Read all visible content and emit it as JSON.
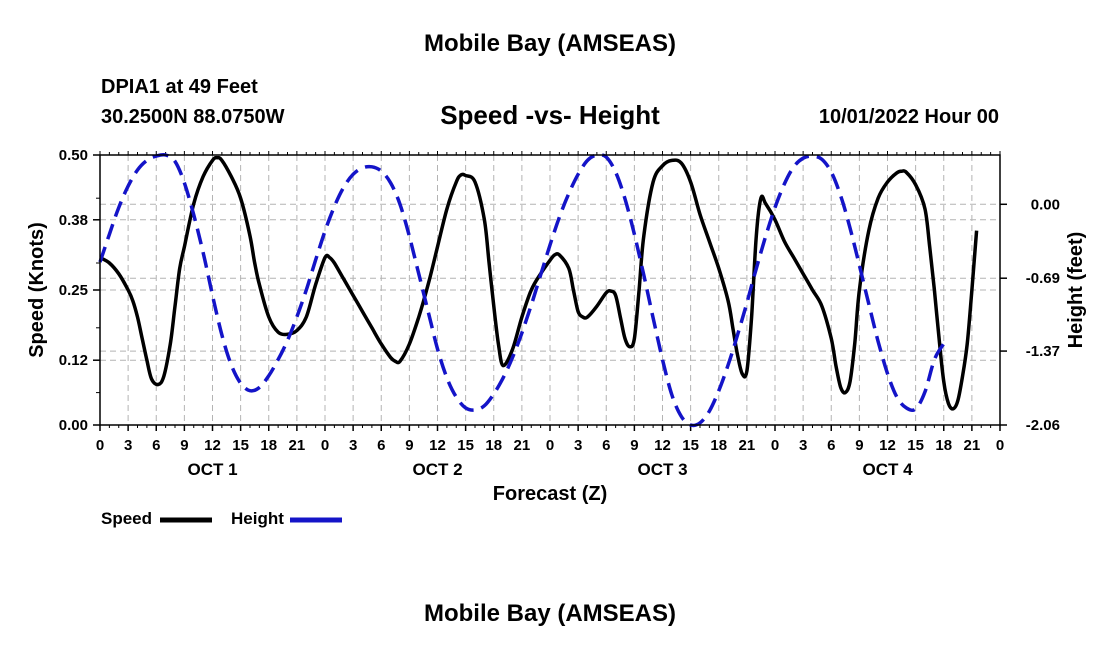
{
  "header": {
    "title": "Mobile Bay (AMSEAS)",
    "station": "DPIA1 at 49 Feet",
    "coordinates": "30.2500N  88.0750W",
    "date": "10/01/2022 Hour 00"
  },
  "footer": {
    "title": "Mobile Bay (AMSEAS)"
  },
  "legend": {
    "speed_label": "Speed",
    "height_label": "Height"
  },
  "chart_data": {
    "type": "line",
    "title": "Speed -vs- Height",
    "xlabel": "Forecast (Z)",
    "ylabel_left": "Speed (Knots)",
    "ylabel_right": "Height (feet)",
    "xlim": [
      0,
      96
    ],
    "ylim_left": [
      0,
      0.5
    ],
    "ylim_right": [
      -2.06,
      0.46
    ],
    "grid": true,
    "x_ticks": [
      0,
      3,
      6,
      9,
      12,
      15,
      18,
      21,
      24,
      27,
      30,
      33,
      36,
      39,
      42,
      45,
      48,
      51,
      54,
      57,
      60,
      63,
      66,
      69,
      72,
      75,
      78,
      81,
      84,
      87,
      90,
      93,
      96
    ],
    "x_tick_labels": [
      "0",
      "3",
      "6",
      "9",
      "12",
      "15",
      "18",
      "21",
      "0",
      "3",
      "6",
      "9",
      "12",
      "15",
      "18",
      "21",
      "0",
      "3",
      "6",
      "9",
      "12",
      "15",
      "18",
      "21",
      "0",
      "3",
      "6",
      "9",
      "12",
      "15",
      "18",
      "21",
      "0"
    ],
    "day_labels": [
      {
        "x": 12,
        "label": "OCT 1"
      },
      {
        "x": 36,
        "label": "OCT 2"
      },
      {
        "x": 60,
        "label": "OCT 3"
      },
      {
        "x": 84,
        "label": "OCT 4"
      }
    ],
    "left_ticks": [
      0.0,
      0.12,
      0.25,
      0.38,
      0.5
    ],
    "left_tick_labels": [
      "0.00",
      "0.12",
      "0.25",
      "0.38",
      "0.50"
    ],
    "right_ticks": [
      0.0,
      -0.69,
      -1.37,
      -2.06
    ],
    "right_tick_labels": [
      "0.00",
      "-0.69",
      "-1.37",
      "-2.06"
    ],
    "series": [
      {
        "name": "Speed",
        "axis": "left",
        "color": "#000000",
        "dash": "solid",
        "points": [
          [
            0,
            0.31
          ],
          [
            1,
            0.3
          ],
          [
            2,
            0.28
          ],
          [
            3,
            0.25
          ],
          [
            3.5,
            0.23
          ],
          [
            4,
            0.2
          ],
          [
            4.5,
            0.16
          ],
          [
            5,
            0.12
          ],
          [
            5.5,
            0.085
          ],
          [
            6.2,
            0.075
          ],
          [
            6.8,
            0.09
          ],
          [
            7.5,
            0.15
          ],
          [
            8,
            0.22
          ],
          [
            8.5,
            0.29
          ],
          [
            9,
            0.33
          ],
          [
            10,
            0.41
          ],
          [
            11,
            0.46
          ],
          [
            12,
            0.49
          ],
          [
            12.5,
            0.495
          ],
          [
            13,
            0.49
          ],
          [
            14,
            0.46
          ],
          [
            15,
            0.42
          ],
          [
            16,
            0.35
          ],
          [
            16.5,
            0.3
          ],
          [
            17,
            0.26
          ],
          [
            18,
            0.2
          ],
          [
            19,
            0.172
          ],
          [
            20,
            0.168
          ],
          [
            21,
            0.175
          ],
          [
            22,
            0.2
          ],
          [
            23,
            0.26
          ],
          [
            24,
            0.31
          ],
          [
            24.5,
            0.31
          ],
          [
            25,
            0.3
          ],
          [
            26,
            0.27
          ],
          [
            27,
            0.24
          ],
          [
            28,
            0.21
          ],
          [
            29,
            0.18
          ],
          [
            30,
            0.15
          ],
          [
            31,
            0.125
          ],
          [
            31.5,
            0.118
          ],
          [
            32,
            0.118
          ],
          [
            33,
            0.15
          ],
          [
            34,
            0.2
          ],
          [
            35,
            0.26
          ],
          [
            36,
            0.33
          ],
          [
            37,
            0.4
          ],
          [
            38,
            0.45
          ],
          [
            38.5,
            0.463
          ],
          [
            39,
            0.462
          ],
          [
            40,
            0.45
          ],
          [
            41,
            0.38
          ],
          [
            41.5,
            0.3
          ],
          [
            42,
            0.22
          ],
          [
            42.5,
            0.15
          ],
          [
            43,
            0.11
          ],
          [
            44,
            0.14
          ],
          [
            45,
            0.2
          ],
          [
            46,
            0.25
          ],
          [
            47,
            0.28
          ],
          [
            48,
            0.305
          ],
          [
            48.5,
            0.315
          ],
          [
            49,
            0.315
          ],
          [
            50,
            0.29
          ],
          [
            50.5,
            0.25
          ],
          [
            51,
            0.21
          ],
          [
            51.5,
            0.2
          ],
          [
            52,
            0.2
          ],
          [
            53,
            0.22
          ],
          [
            54,
            0.245
          ],
          [
            54.5,
            0.248
          ],
          [
            55,
            0.24
          ],
          [
            55.5,
            0.2
          ],
          [
            56,
            0.16
          ],
          [
            56.5,
            0.145
          ],
          [
            57,
            0.16
          ],
          [
            57.5,
            0.25
          ],
          [
            58,
            0.35
          ],
          [
            59,
            0.45
          ],
          [
            60,
            0.48
          ],
          [
            61,
            0.49
          ],
          [
            62,
            0.485
          ],
          [
            63,
            0.45
          ],
          [
            64,
            0.39
          ],
          [
            65,
            0.34
          ],
          [
            66,
            0.29
          ],
          [
            67,
            0.23
          ],
          [
            67.5,
            0.18
          ],
          [
            68,
            0.13
          ],
          [
            68.5,
            0.095
          ],
          [
            69,
            0.1
          ],
          [
            69.5,
            0.2
          ],
          [
            70,
            0.35
          ],
          [
            70.5,
            0.42
          ],
          [
            71,
            0.41
          ],
          [
            72,
            0.38
          ],
          [
            73,
            0.34
          ],
          [
            74,
            0.31
          ],
          [
            75,
            0.28
          ],
          [
            76,
            0.25
          ],
          [
            77,
            0.22
          ],
          [
            78,
            0.16
          ],
          [
            78.5,
            0.11
          ],
          [
            79,
            0.07
          ],
          [
            79.5,
            0.06
          ],
          [
            80,
            0.08
          ],
          [
            80.5,
            0.15
          ],
          [
            81,
            0.25
          ],
          [
            82,
            0.36
          ],
          [
            83,
            0.42
          ],
          [
            84,
            0.45
          ],
          [
            85,
            0.467
          ],
          [
            85.5,
            0.47
          ],
          [
            86,
            0.468
          ],
          [
            87,
            0.445
          ],
          [
            88,
            0.4
          ],
          [
            88.5,
            0.33
          ],
          [
            89,
            0.25
          ],
          [
            89.5,
            0.16
          ],
          [
            90,
            0.08
          ],
          [
            90.5,
            0.04
          ],
          [
            91,
            0.03
          ],
          [
            91.5,
            0.045
          ],
          [
            92,
            0.09
          ],
          [
            92.5,
            0.15
          ],
          [
            93,
            0.25
          ],
          [
            93.5,
            0.36
          ]
        ]
      },
      {
        "name": "Height",
        "axis": "right",
        "color": "#1414c8",
        "dash": "dashed",
        "points": [
          [
            0,
            -0.54
          ],
          [
            1,
            -0.28
          ],
          [
            2,
            -0.03
          ],
          [
            3,
            0.17
          ],
          [
            4,
            0.32
          ],
          [
            5,
            0.41
          ],
          [
            6,
            0.45
          ],
          [
            7,
            0.46
          ],
          [
            8,
            0.4
          ],
          [
            9,
            0.2
          ],
          [
            10,
            -0.1
          ],
          [
            11,
            -0.45
          ],
          [
            12,
            -0.85
          ],
          [
            13,
            -1.22
          ],
          [
            14,
            -1.5
          ],
          [
            15,
            -1.67
          ],
          [
            16,
            -1.74
          ],
          [
            17,
            -1.71
          ],
          [
            18,
            -1.6
          ],
          [
            19,
            -1.45
          ],
          [
            20,
            -1.27
          ],
          [
            21,
            -1.05
          ],
          [
            22,
            -0.8
          ],
          [
            23,
            -0.52
          ],
          [
            24,
            -0.25
          ],
          [
            25,
            -0.02
          ],
          [
            26,
            0.16
          ],
          [
            27,
            0.28
          ],
          [
            28,
            0.34
          ],
          [
            29,
            0.35
          ],
          [
            30,
            0.31
          ],
          [
            31,
            0.2
          ],
          [
            32,
            0.0
          ],
          [
            33,
            -0.3
          ],
          [
            34,
            -0.65
          ],
          [
            35,
            -1.0
          ],
          [
            36,
            -1.35
          ],
          [
            37,
            -1.62
          ],
          [
            38,
            -1.8
          ],
          [
            39,
            -1.9
          ],
          [
            40,
            -1.92
          ],
          [
            41,
            -1.88
          ],
          [
            42,
            -1.77
          ],
          [
            43,
            -1.62
          ],
          [
            44,
            -1.43
          ],
          [
            45,
            -1.2
          ],
          [
            46,
            -0.94
          ],
          [
            47,
            -0.66
          ],
          [
            48,
            -0.38
          ],
          [
            49,
            -0.12
          ],
          [
            50,
            0.1
          ],
          [
            51,
            0.28
          ],
          [
            52,
            0.41
          ],
          [
            53,
            0.46
          ],
          [
            54,
            0.44
          ],
          [
            55,
            0.3
          ],
          [
            56,
            0.05
          ],
          [
            57,
            -0.28
          ],
          [
            58,
            -0.66
          ],
          [
            59,
            -1.06
          ],
          [
            60,
            -1.45
          ],
          [
            61,
            -1.78
          ],
          [
            62,
            -1.98
          ],
          [
            63,
            -2.06
          ],
          [
            64,
            -2.04
          ],
          [
            65,
            -1.93
          ],
          [
            66,
            -1.74
          ],
          [
            67,
            -1.5
          ],
          [
            68,
            -1.22
          ],
          [
            69,
            -0.92
          ],
          [
            70,
            -0.6
          ],
          [
            71,
            -0.3
          ],
          [
            72,
            -0.03
          ],
          [
            73,
            0.19
          ],
          [
            74,
            0.35
          ],
          [
            75,
            0.43
          ],
          [
            76,
            0.45
          ],
          [
            77,
            0.42
          ],
          [
            78,
            0.3
          ],
          [
            79,
            0.08
          ],
          [
            80,
            -0.22
          ],
          [
            81,
            -0.57
          ],
          [
            82,
            -0.93
          ],
          [
            83,
            -1.28
          ],
          [
            84,
            -1.58
          ],
          [
            85,
            -1.8
          ],
          [
            86,
            -1.9
          ],
          [
            87,
            -1.91
          ],
          [
            88,
            -1.75
          ],
          [
            89,
            -1.45
          ],
          [
            90,
            -1.3
          ]
        ]
      }
    ]
  }
}
